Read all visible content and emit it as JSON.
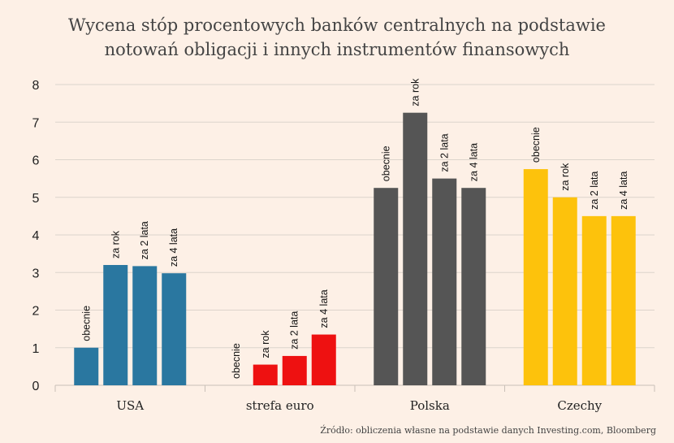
{
  "chart_data": {
    "type": "bar",
    "title_lines": [
      "Wycena stóp procentowych banków centralnych na podstawie",
      "notowań obligacji i innych instrumentów finansowych"
    ],
    "categories": [
      "USA",
      "strefa euro",
      "Polska",
      "Czechy"
    ],
    "series_labels": [
      "obecnie",
      "za rok",
      "za 2 lata",
      "za 4 lata"
    ],
    "values": [
      [
        1.0,
        3.2,
        3.17,
        2.98
      ],
      [
        0.0,
        0.55,
        0.78,
        1.35
      ],
      [
        5.25,
        7.25,
        5.5,
        5.25
      ],
      [
        5.75,
        5.0,
        4.5,
        4.5
      ]
    ],
    "group_colors": [
      "#2a77a0",
      "#ee1111",
      "#555555",
      "#fdc20c"
    ],
    "yticks": [
      0,
      1,
      2,
      3,
      4,
      5,
      6,
      7,
      8
    ],
    "ylim": [
      0,
      8
    ],
    "grid": true,
    "source": "Źródło: obliczenia własne na podstawie danych Investing.com, Bloomberg"
  }
}
